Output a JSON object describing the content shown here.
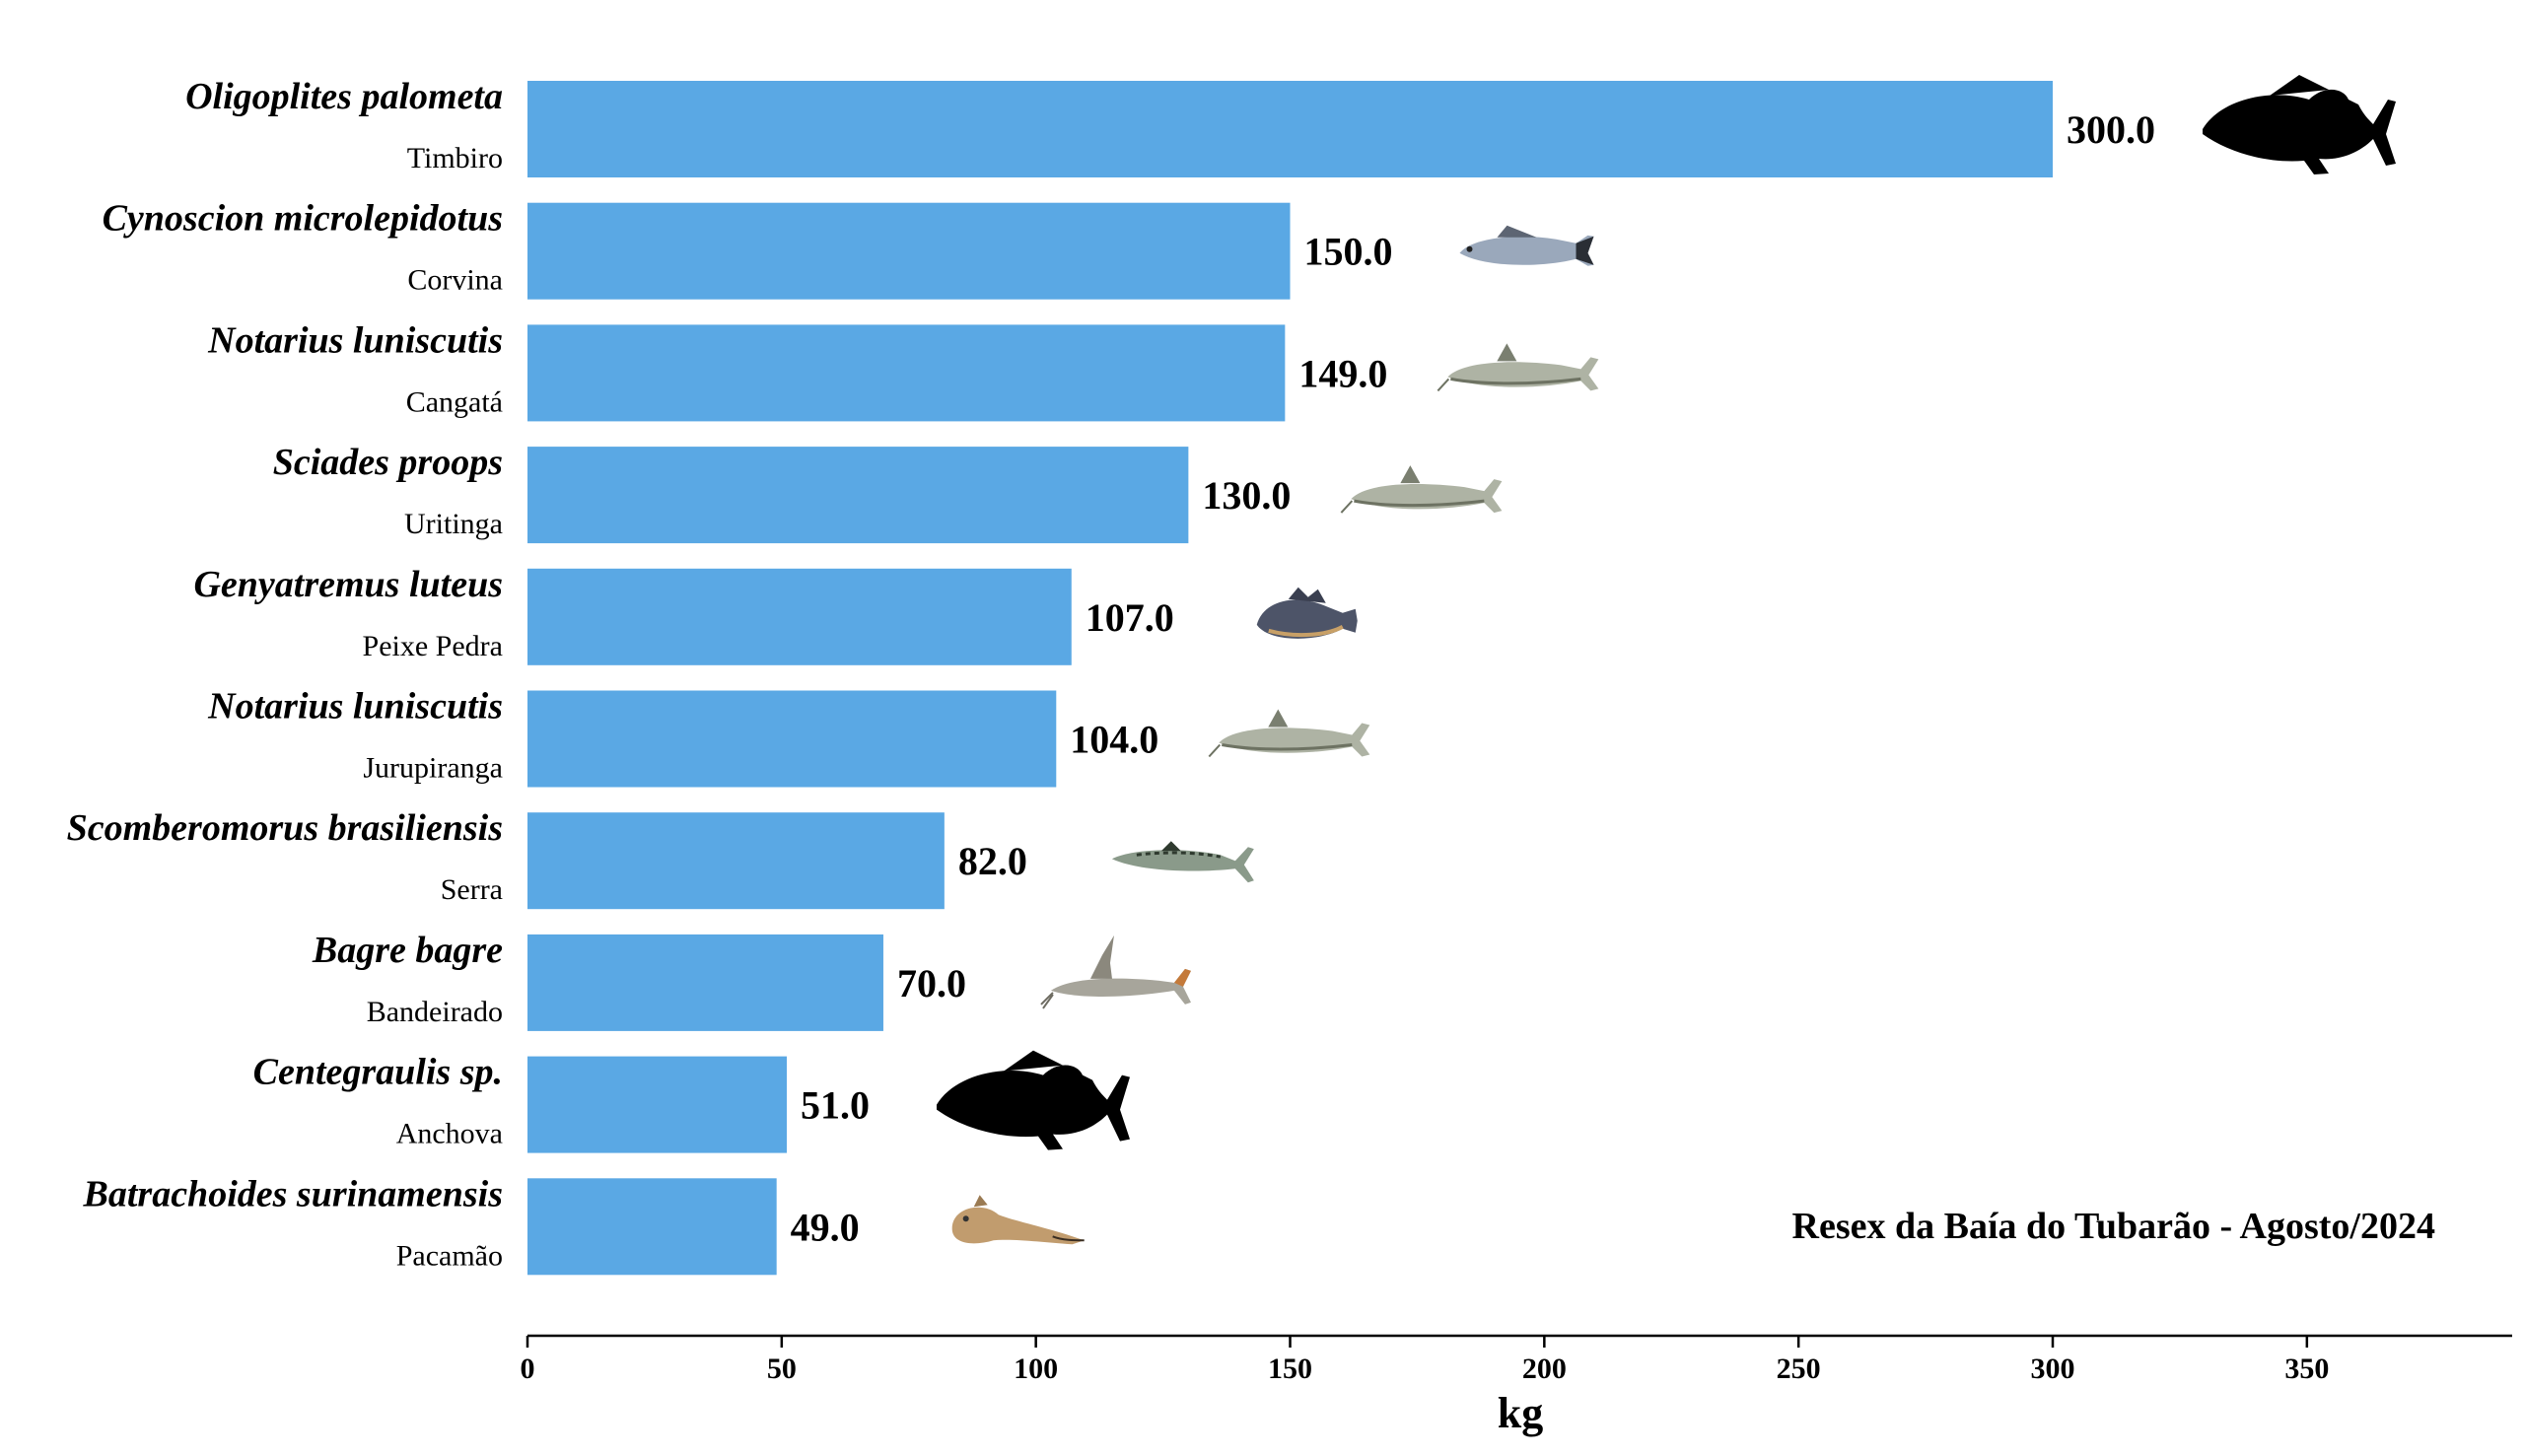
{
  "chart_data": {
    "type": "bar",
    "orientation": "horizontal",
    "xlabel": "kg",
    "xlim": [
      0,
      390
    ],
    "xticks": [
      0,
      50,
      100,
      150,
      200,
      250,
      300,
      350
    ],
    "annotation": "Resex da Baía do Tubarão - Agosto/2024",
    "bar_color": "#5aa8e4",
    "categories": [
      {
        "scientific": "Oligoplites palometa",
        "common": "Timbiro",
        "value": 300.0,
        "label": "300.0",
        "icon": "fish-silhouette-icon"
      },
      {
        "scientific": "Cynoscion microlepidotus",
        "common": "Corvina",
        "value": 150.0,
        "label": "150.0",
        "icon": "corvina-fish-icon"
      },
      {
        "scientific": "Notarius luniscutis",
        "common": "Cangatá",
        "value": 149.0,
        "label": "149.0",
        "icon": "catfish-icon"
      },
      {
        "scientific": "Sciades proops",
        "common": "Uritinga",
        "value": 130.0,
        "label": "130.0",
        "icon": "catfish-icon"
      },
      {
        "scientific": "Genyatremus luteus",
        "common": "Peixe Pedra",
        "value": 107.0,
        "label": "107.0",
        "icon": "grunt-fish-icon"
      },
      {
        "scientific": "Notarius luniscutis",
        "common": "Jurupiranga",
        "value": 104.0,
        "label": "104.0",
        "icon": "catfish-icon"
      },
      {
        "scientific": "Scomberomorus brasiliensis",
        "common": "Serra",
        "value": 82.0,
        "label": "82.0",
        "icon": "mackerel-icon"
      },
      {
        "scientific": "Bagre bagre",
        "common": "Bandeirado",
        "value": 70.0,
        "label": "70.0",
        "icon": "flag-catfish-icon"
      },
      {
        "scientific": "Centegraulis sp.",
        "common": "Anchova",
        "value": 51.0,
        "label": "51.0",
        "icon": "fish-silhouette-icon"
      },
      {
        "scientific": "Batrachoides surinamensis",
        "common": "Pacamão",
        "value": 49.0,
        "label": "49.0",
        "icon": "toadfish-icon"
      }
    ]
  }
}
